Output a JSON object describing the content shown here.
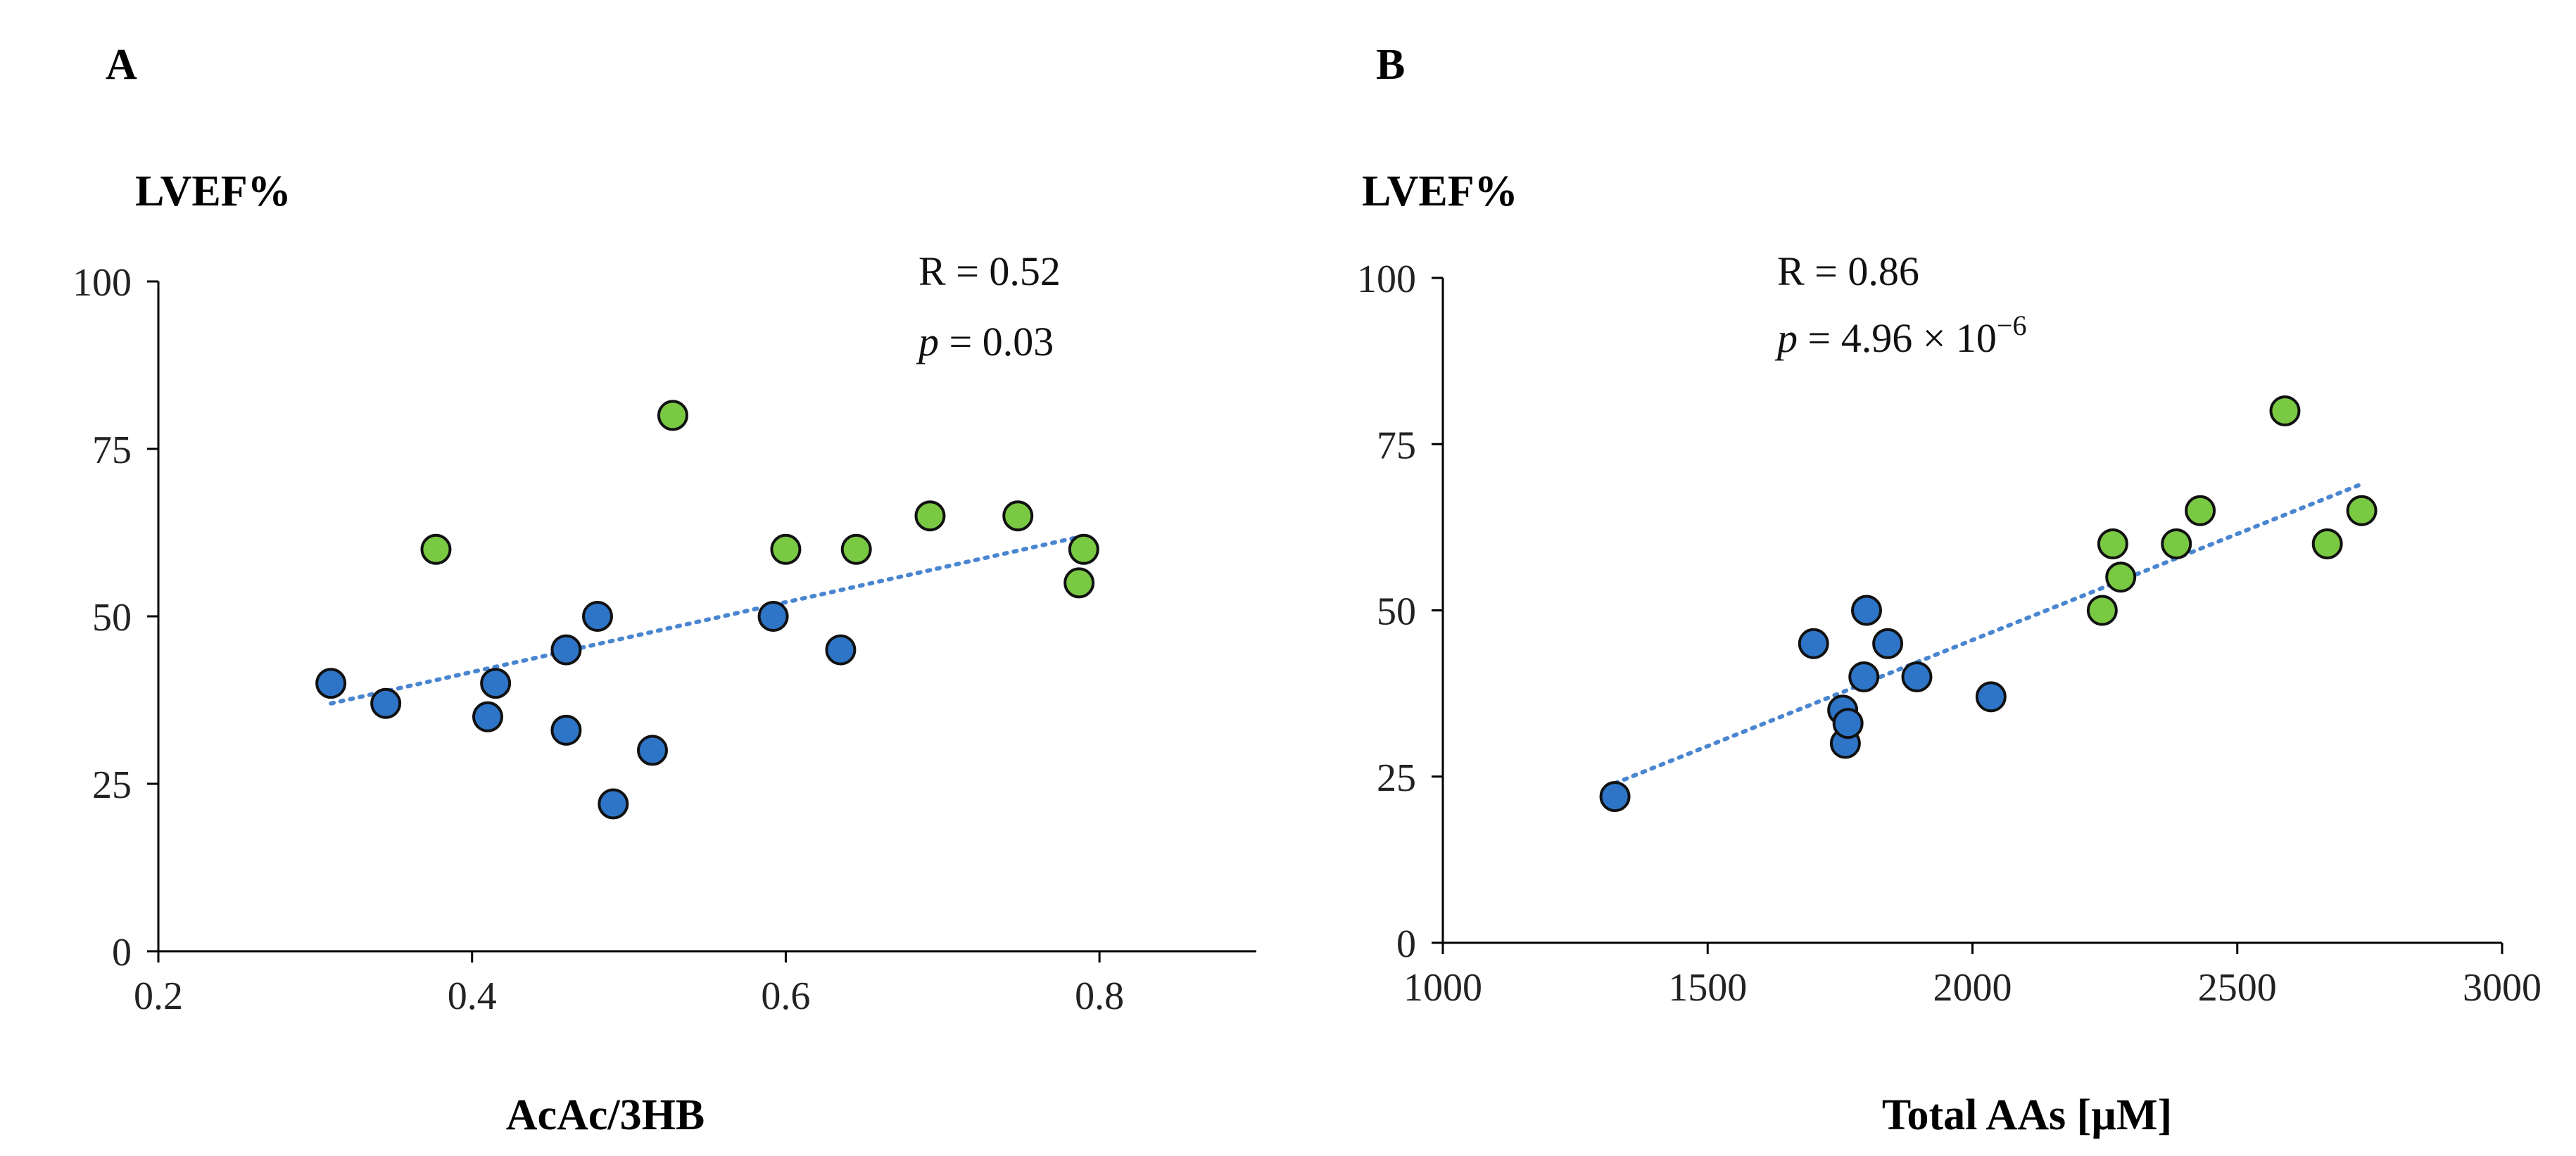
{
  "chart_data": [
    {
      "type": "scatter",
      "panel": "A",
      "ylabel": "LVEF%",
      "xlabel": "AcAc/3HB",
      "xlim": [
        0.2,
        0.9
      ],
      "ylim": [
        0,
        100
      ],
      "xticks": [
        0.2,
        0.4,
        0.6,
        0.8
      ],
      "xtick_labels": [
        "0.2",
        "0.4",
        "0.6",
        "0.8"
      ],
      "yticks": [
        0,
        25,
        50,
        75,
        100
      ],
      "ytick_labels": [
        "0",
        "25",
        "50",
        "75",
        "100"
      ],
      "annotation_r": "R = 0.52",
      "annotation_p_symbol": "p",
      "annotation_p_value": " = 0.03",
      "annotation_p_exp": "",
      "series": [
        {
          "color": "#2e75c8",
          "points": [
            [
              0.31,
              40
            ],
            [
              0.345,
              37
            ],
            [
              0.41,
              35
            ],
            [
              0.415,
              40
            ],
            [
              0.46,
              45
            ],
            [
              0.46,
              33
            ],
            [
              0.48,
              50
            ],
            [
              0.49,
              22
            ],
            [
              0.515,
              30
            ],
            [
              0.592,
              50
            ],
            [
              0.635,
              45
            ]
          ]
        },
        {
          "color": "#7ac943",
          "points": [
            [
              0.377,
              60
            ],
            [
              0.528,
              80
            ],
            [
              0.6,
              60
            ],
            [
              0.645,
              60
            ],
            [
              0.692,
              65
            ],
            [
              0.748,
              65
            ],
            [
              0.787,
              55
            ],
            [
              0.79,
              60
            ]
          ]
        }
      ],
      "trendline": [
        [
          0.31,
          37
        ],
        [
          0.79,
          62
        ]
      ]
    },
    {
      "type": "scatter",
      "panel": "B",
      "ylabel": "LVEF%",
      "xlabel": "Total AAs [µM]",
      "xlim": [
        1000,
        3000
      ],
      "ylim": [
        0,
        100
      ],
      "xticks": [
        1000,
        1500,
        2000,
        2500,
        3000
      ],
      "xtick_labels": [
        "1000",
        "1500",
        "2000",
        "2500",
        "3000"
      ],
      "yticks": [
        0,
        25,
        50,
        75,
        100
      ],
      "ytick_labels": [
        "0",
        "25",
        "50",
        "75",
        "100"
      ],
      "annotation_r": "R = 0.86",
      "annotation_p_symbol": "p",
      "annotation_p_value": " =  4.96 × 10",
      "annotation_p_exp": "−6",
      "series": [
        {
          "color": "#2e75c8",
          "points": [
            [
              1325,
              22
            ],
            [
              1700,
              45
            ],
            [
              1755,
              35
            ],
            [
              1760,
              30
            ],
            [
              1765,
              33
            ],
            [
              1795,
              40
            ],
            [
              1800,
              50
            ],
            [
              1840,
              45
            ],
            [
              1895,
              40
            ],
            [
              2035,
              37
            ]
          ]
        },
        {
          "color": "#7ac943",
          "points": [
            [
              2245,
              50
            ],
            [
              2265,
              60
            ],
            [
              2280,
              55
            ],
            [
              2385,
              60
            ],
            [
              2430,
              65
            ],
            [
              2590,
              80
            ],
            [
              2670,
              60
            ],
            [
              2735,
              65
            ]
          ]
        }
      ],
      "trendline": [
        [
          1325,
          24
        ],
        [
          2735,
          69
        ]
      ]
    }
  ]
}
